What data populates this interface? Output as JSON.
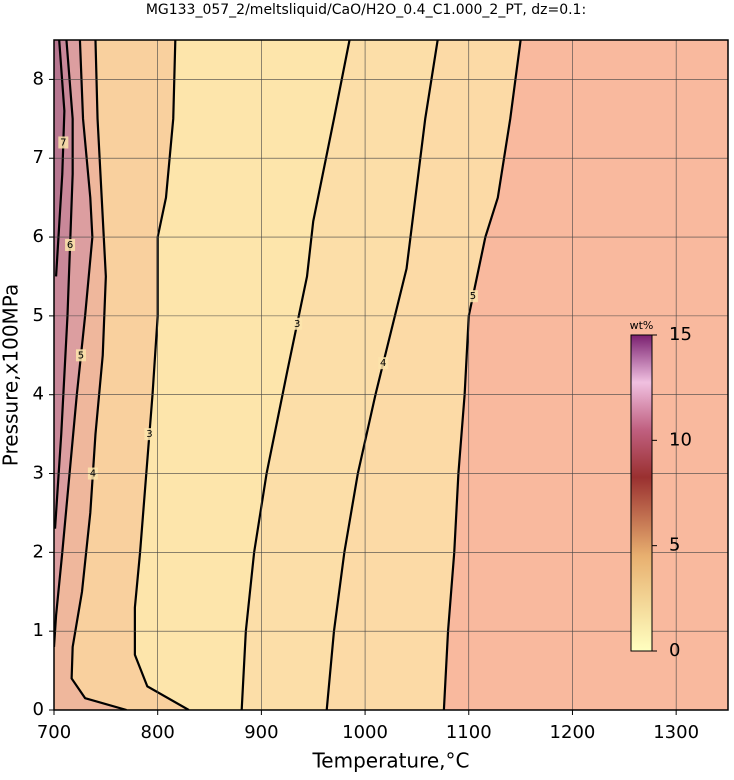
{
  "chart_data": {
    "type": "contour",
    "title": "MG133_057_2/meltsliquid/CaO/H2O_0.4_C1.000_2_PT, dz=0.1:",
    "x_label": "Temperature,°C",
    "y_label": "Pressure,x100MPa",
    "xlim": [
      700,
      1350
    ],
    "ylim": [
      0,
      8.5
    ],
    "xticks": [
      700,
      800,
      900,
      1000,
      1100,
      1200,
      1300
    ],
    "yticks": [
      0,
      1,
      2,
      3,
      4,
      5,
      6,
      7,
      8
    ],
    "grid": true,
    "colorbar": {
      "label": "wt%",
      "lim": [
        0,
        15
      ],
      "ticks": [
        0,
        5,
        10,
        15
      ]
    },
    "contours": [
      {
        "level": 3,
        "x": [
          817,
          815,
          808,
          800,
          800,
          795,
          789,
          783,
          778,
          778,
          790,
          830
        ],
        "y": [
          8.5,
          7.5,
          6.5,
          6,
          5,
          4,
          3,
          2,
          1.3,
          0.7,
          0.3,
          0
        ]
      },
      {
        "level": 3,
        "x": [
          985,
          970,
          950,
          944,
          925,
          905,
          893,
          885,
          881
        ],
        "y": [
          8.5,
          7.5,
          6.2,
          5.5,
          4.3,
          3,
          2,
          1,
          0
        ]
      },
      {
        "level": 4,
        "x": [
          1070,
          1058,
          1040,
          1025,
          1010,
          993,
          980,
          970,
          963
        ],
        "y": [
          8.5,
          7.5,
          5.6,
          4.8,
          4,
          3,
          2,
          1,
          0
        ]
      },
      {
        "level": 5,
        "x": [
          1150,
          1140,
          1128,
          1116,
          1108,
          1100,
          1096,
          1090,
          1086,
          1080,
          1076
        ],
        "y": [
          8.5,
          7.5,
          6.5,
          6,
          5.5,
          5,
          4,
          3,
          2,
          1,
          0
        ]
      },
      {
        "level": 4,
        "x": [
          740,
          742,
          746,
          750,
          747,
          740,
          735,
          727,
          718,
          717,
          730,
          770
        ],
        "y": [
          8.5,
          7.5,
          6.5,
          5.5,
          4.5,
          3.5,
          2.5,
          1.5,
          0.8,
          0.4,
          0.15,
          0
        ]
      },
      {
        "level": 5,
        "x": [
          725,
          728,
          735,
          737,
          730,
          722,
          715,
          708,
          702,
          700
        ],
        "y": [
          8.5,
          7.5,
          6.5,
          6,
          5,
          4,
          3,
          2,
          1.2,
          0.8
        ]
      },
      {
        "level": 6,
        "x": [
          712,
          718,
          718,
          713,
          707,
          701
        ],
        "y": [
          8.5,
          7.5,
          6.8,
          5,
          3.5,
          2.3
        ]
      },
      {
        "level": 7,
        "x": [
          705,
          710,
          708,
          702
        ],
        "y": [
          8.5,
          7.6,
          6.8,
          5.5
        ]
      }
    ]
  }
}
